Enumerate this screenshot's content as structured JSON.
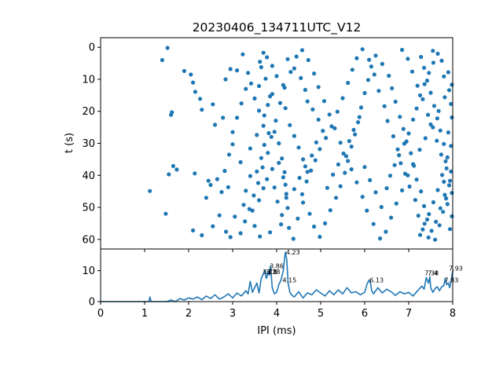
{
  "title": "20230406_134711UTC_V12",
  "colors": {
    "series": "#1f77b4",
    "axis": "#000000",
    "background": "#ffffff"
  },
  "chart_data": [
    {
      "panel": "top",
      "type": "scatter",
      "xlabel": "",
      "ylabel": "t (s)",
      "xlim": [
        0,
        8
      ],
      "ylim": [
        63,
        -3
      ],
      "y_inverted": true,
      "yticks": [
        0,
        10,
        20,
        30,
        40,
        50,
        60
      ],
      "xtick_labels_shown": false,
      "grid": false,
      "points_approx": [
        [
          1.52,
          0.2
        ],
        [
          1.4,
          4.0
        ],
        [
          1.9,
          7.4
        ],
        [
          2.05,
          8.5
        ],
        [
          2.1,
          11.0
        ],
        [
          2.15,
          13.9
        ],
        [
          1.62,
          20.3
        ],
        [
          1.6,
          21.1
        ],
        [
          2.26,
          16.1
        ],
        [
          2.3,
          19.5
        ],
        [
          2.55,
          17.8
        ],
        [
          2.6,
          24.2
        ],
        [
          2.78,
          22.0
        ],
        [
          2.84,
          10.0
        ],
        [
          2.95,
          6.8
        ],
        [
          3.1,
          7.2
        ],
        [
          3.23,
          2.2
        ],
        [
          3.3,
          13.0
        ],
        [
          3.18,
          35.9
        ],
        [
          3.0,
          30.3
        ],
        [
          2.9,
          43.7
        ],
        [
          2.75,
          45.2
        ],
        [
          2.45,
          41.7
        ],
        [
          2.14,
          39.4
        ],
        [
          2.1,
          57.2
        ],
        [
          2.3,
          58.7
        ],
        [
          1.73,
          38.2
        ],
        [
          1.65,
          37.1
        ],
        [
          1.55,
          39.7
        ],
        [
          1.48,
          52.0
        ],
        [
          1.12,
          44.9
        ],
        [
          2.95,
          59.3
        ],
        [
          3.05,
          52.9
        ],
        [
          3.25,
          49.2
        ],
        [
          3.45,
          51.0
        ],
        [
          3.6,
          47.8
        ],
        [
          3.7,
          44.0
        ],
        [
          3.78,
          41.2
        ],
        [
          3.9,
          38.0
        ],
        [
          4.05,
          36.1
        ],
        [
          4.15,
          40.6
        ],
        [
          4.2,
          42.9
        ],
        [
          4.22,
          47.0
        ],
        [
          4.25,
          50.2
        ],
        [
          4.1,
          55.3
        ],
        [
          3.85,
          57.8
        ],
        [
          3.62,
          59.1
        ],
        [
          3.5,
          55.8
        ],
        [
          3.4,
          31.6
        ],
        [
          3.55,
          27.4
        ],
        [
          3.7,
          24.5
        ],
        [
          3.72,
          21.3
        ],
        [
          3.8,
          18.0
        ],
        [
          3.9,
          14.6
        ],
        [
          3.6,
          12.1
        ],
        [
          3.62,
          4.5
        ],
        [
          3.7,
          1.7
        ],
        [
          3.78,
          3.1
        ],
        [
          3.9,
          5.8
        ],
        [
          4.0,
          9.0
        ],
        [
          4.15,
          11.8
        ],
        [
          4.25,
          3.7
        ],
        [
          4.4,
          6.6
        ],
        [
          4.55,
          9.6
        ],
        [
          4.65,
          13.3
        ],
        [
          4.7,
          16.9
        ],
        [
          4.82,
          19.4
        ],
        [
          4.95,
          22.6
        ],
        [
          5.05,
          26.1
        ],
        [
          4.9,
          29.7
        ],
        [
          4.8,
          33.8
        ],
        [
          4.65,
          37.2
        ],
        [
          4.52,
          40.8
        ],
        [
          4.4,
          44.3
        ],
        [
          4.6,
          48.5
        ],
        [
          4.75,
          52.0
        ],
        [
          4.85,
          56.0
        ],
        [
          4.98,
          59.2
        ],
        [
          5.1,
          55.0
        ],
        [
          5.22,
          50.9
        ],
        [
          5.35,
          47.0
        ],
        [
          5.45,
          43.4
        ],
        [
          5.55,
          39.2
        ],
        [
          5.62,
          35.5
        ],
        [
          5.7,
          31.0
        ],
        [
          5.78,
          27.2
        ],
        [
          5.85,
          23.4
        ],
        [
          5.92,
          18.8
        ],
        [
          6.0,
          14.3
        ],
        [
          6.08,
          10.2
        ],
        [
          6.15,
          6.0
        ],
        [
          6.25,
          2.6
        ],
        [
          6.4,
          5.2
        ],
        [
          6.55,
          8.9
        ],
        [
          6.62,
          12.8
        ],
        [
          6.7,
          17.0
        ],
        [
          6.8,
          21.7
        ],
        [
          6.88,
          25.5
        ],
        [
          6.95,
          29.4
        ],
        [
          7.05,
          33.1
        ],
        [
          7.12,
          37.0
        ],
        [
          7.18,
          41.3
        ],
        [
          7.28,
          45.0
        ],
        [
          7.35,
          49.6
        ],
        [
          7.42,
          53.8
        ],
        [
          7.52,
          57.3
        ],
        [
          7.6,
          60.1
        ],
        [
          7.7,
          55.6
        ],
        [
          7.78,
          51.4
        ],
        [
          7.85,
          47.2
        ],
        [
          7.92,
          43.1
        ],
        [
          7.96,
          38.8
        ],
        [
          7.88,
          34.4
        ],
        [
          7.8,
          30.2
        ],
        [
          7.72,
          26.0
        ],
        [
          7.65,
          22.2
        ],
        [
          7.58,
          18.3
        ],
        [
          7.5,
          14.2
        ],
        [
          7.42,
          10.4
        ],
        [
          7.35,
          6.4
        ],
        [
          7.28,
          3.0
        ],
        [
          7.55,
          1.1
        ],
        [
          7.75,
          4.2
        ],
        [
          7.9,
          7.8
        ],
        [
          7.98,
          11.7
        ],
        [
          7.82,
          15.6
        ],
        [
          7.68,
          19.9
        ],
        [
          7.5,
          24.1
        ],
        [
          7.38,
          28.4
        ],
        [
          7.25,
          32.0
        ],
        [
          7.1,
          36.5
        ],
        [
          6.98,
          40.0
        ],
        [
          6.85,
          44.7
        ],
        [
          6.72,
          48.8
        ],
        [
          6.6,
          53.2
        ],
        [
          6.48,
          57.6
        ],
        [
          6.35,
          59.7
        ],
        [
          6.2,
          55.2
        ],
        [
          6.05,
          51.0
        ],
        [
          5.95,
          46.7
        ],
        [
          5.82,
          42.2
        ],
        [
          5.7,
          38.1
        ],
        [
          5.58,
          34.0
        ],
        [
          5.45,
          29.8
        ],
        [
          5.32,
          25.3
        ],
        [
          5.2,
          21.0
        ],
        [
          5.08,
          16.8
        ],
        [
          4.95,
          12.4
        ],
        [
          4.85,
          8.2
        ],
        [
          4.72,
          4.0
        ],
        [
          4.58,
          0.9
        ],
        [
          4.45,
          2.9
        ],
        [
          4.32,
          7.7
        ],
        [
          4.18,
          12.6
        ],
        [
          4.08,
          17.4
        ],
        [
          3.98,
          22.9
        ],
        [
          3.88,
          28.0
        ],
        [
          3.8,
          33.0
        ],
        [
          3.68,
          37.5
        ],
        [
          3.58,
          42.4
        ],
        [
          3.48,
          46.3
        ],
        [
          3.38,
          50.5
        ],
        [
          3.28,
          54.4
        ],
        [
          3.18,
          58.1
        ],
        [
          3.95,
          43.8
        ],
        [
          4.02,
          48.2
        ],
        [
          4.12,
          52.4
        ],
        [
          4.28,
          56.4
        ],
        [
          4.38,
          59.8
        ],
        [
          4.48,
          53.5
        ],
        [
          4.58,
          45.9
        ],
        [
          4.68,
          41.9
        ],
        [
          4.78,
          38.5
        ],
        [
          4.88,
          35.3
        ],
        [
          4.98,
          31.8
        ],
        [
          5.12,
          28.3
        ],
        [
          5.25,
          24.7
        ],
        [
          5.38,
          20.1
        ],
        [
          5.5,
          15.9
        ],
        [
          5.62,
          11.1
        ],
        [
          5.72,
          7.0
        ],
        [
          5.82,
          3.4
        ],
        [
          5.95,
          0.6
        ],
        [
          6.1,
          3.9
        ],
        [
          6.22,
          8.5
        ],
        [
          6.32,
          13.6
        ],
        [
          6.45,
          18.4
        ],
        [
          6.52,
          23.0
        ],
        [
          6.65,
          27.8
        ],
        [
          6.75,
          31.9
        ],
        [
          6.82,
          36.2
        ],
        [
          6.92,
          39.5
        ],
        [
          7.02,
          43.5
        ],
        [
          7.15,
          47.7
        ],
        [
          7.22,
          52.6
        ],
        [
          7.32,
          56.9
        ],
        [
          7.45,
          59.4
        ],
        [
          7.62,
          54.5
        ],
        [
          7.72,
          50.3
        ],
        [
          7.82,
          46.1
        ],
        [
          7.94,
          41.7
        ],
        [
          7.86,
          37.8
        ],
        [
          7.74,
          33.5
        ],
        [
          7.64,
          29.2
        ],
        [
          7.55,
          25.0
        ],
        [
          7.44,
          21.1
        ],
        [
          7.32,
          16.2
        ],
        [
          7.2,
          12.0
        ],
        [
          7.08,
          7.6
        ],
        [
          6.98,
          3.6
        ],
        [
          6.85,
          0.8
        ],
        [
          3.65,
          6.2
        ],
        [
          3.75,
          9.8
        ],
        [
          3.85,
          15.3
        ],
        [
          4.2,
          19.0
        ],
        [
          4.3,
          24.3
        ],
        [
          4.4,
          27.7
        ],
        [
          4.5,
          31.3
        ],
        [
          4.6,
          35.0
        ],
        [
          4.7,
          38.9
        ],
        [
          3.95,
          26.4
        ],
        [
          4.05,
          30.0
        ],
        [
          4.12,
          34.7
        ],
        [
          4.18,
          39.0
        ],
        [
          4.22,
          45.8
        ],
        [
          3.55,
          38.8
        ],
        [
          3.65,
          34.6
        ],
        [
          3.72,
          30.5
        ],
        [
          3.82,
          26.8
        ],
        [
          3.6,
          19.8
        ],
        [
          3.5,
          16.0
        ],
        [
          3.42,
          11.3
        ],
        [
          3.35,
          8.0
        ],
        [
          3.2,
          17.5
        ],
        [
          3.1,
          22.0
        ],
        [
          3.0,
          26.5
        ],
        [
          2.92,
          33.5
        ],
        [
          2.82,
          38.6
        ],
        [
          2.65,
          41.2
        ],
        [
          2.5,
          43.0
        ],
        [
          2.4,
          47.0
        ],
        [
          2.7,
          52.5
        ],
        [
          2.55,
          55.9
        ],
        [
          2.85,
          57.6
        ],
        [
          3.3,
          44.8
        ],
        [
          3.4,
          40.2
        ],
        [
          5.15,
          43.9
        ],
        [
          5.28,
          39.8
        ],
        [
          5.4,
          36.6
        ],
        [
          5.52,
          33.2
        ],
        [
          5.65,
          29.3
        ],
        [
          5.75,
          25.8
        ],
        [
          5.88,
          21.8
        ],
        [
          6.0,
          37.4
        ],
        [
          6.12,
          41.5
        ],
        [
          6.25,
          45.3
        ],
        [
          6.38,
          49.9
        ],
        [
          6.5,
          44.0
        ],
        [
          6.58,
          40.1
        ],
        [
          6.68,
          36.8
        ],
        [
          6.78,
          33.7
        ],
        [
          6.9,
          30.1
        ],
        [
          7.0,
          26.9
        ],
        [
          7.1,
          22.6
        ],
        [
          7.18,
          19.1
        ],
        [
          7.26,
          15.0
        ],
        [
          7.36,
          11.5
        ],
        [
          7.46,
          8.0
        ],
        [
          7.56,
          4.8
        ],
        [
          7.66,
          2.0
        ],
        [
          7.8,
          9.1
        ],
        [
          7.92,
          13.4
        ],
        [
          7.96,
          17.7
        ],
        [
          7.98,
          21.9
        ],
        [
          7.9,
          26.6
        ],
        [
          7.96,
          30.8
        ],
        [
          7.84,
          35.6
        ],
        [
          7.76,
          39.9
        ],
        [
          7.66,
          44.6
        ],
        [
          7.56,
          48.4
        ],
        [
          7.46,
          52.1
        ],
        [
          7.36,
          55.1
        ],
        [
          7.26,
          58.6
        ],
        [
          7.94,
          56.8
        ],
        [
          7.98,
          52.8
        ],
        [
          7.88,
          49.0
        ],
        [
          7.98,
          45.5
        ],
        [
          7.8,
          42.0
        ]
      ]
    },
    {
      "panel": "bottom",
      "type": "line",
      "xlabel": "IPI (ms)",
      "ylabel": "",
      "xlim": [
        0,
        8
      ],
      "ylim": [
        0,
        17
      ],
      "xticks": [
        0,
        1,
        2,
        3,
        4,
        5,
        6,
        7,
        8
      ],
      "yticks": [
        0,
        10
      ],
      "grid": false,
      "x": [
        0.0,
        1.0,
        1.1,
        1.12,
        1.15,
        1.2,
        1.5,
        1.6,
        1.7,
        1.8,
        1.9,
        2.0,
        2.1,
        2.2,
        2.3,
        2.4,
        2.5,
        2.6,
        2.7,
        2.8,
        2.9,
        3.0,
        3.1,
        3.2,
        3.3,
        3.35,
        3.4,
        3.45,
        3.5,
        3.55,
        3.6,
        3.65,
        3.7,
        3.73,
        3.76,
        3.78,
        3.8,
        3.83,
        3.86,
        3.9,
        3.95,
        4.0,
        4.05,
        4.1,
        4.15,
        4.18,
        4.2,
        4.23,
        4.26,
        4.3,
        4.35,
        4.4,
        4.5,
        4.6,
        4.7,
        4.8,
        4.9,
        5.0,
        5.1,
        5.2,
        5.3,
        5.4,
        5.5,
        5.6,
        5.7,
        5.8,
        5.9,
        6.0,
        6.05,
        6.1,
        6.13,
        6.16,
        6.2,
        6.3,
        6.4,
        6.5,
        6.6,
        6.7,
        6.8,
        6.9,
        7.0,
        7.1,
        7.2,
        7.3,
        7.35,
        7.4,
        7.45,
        7.48,
        7.5,
        7.55,
        7.6,
        7.65,
        7.7,
        7.75,
        7.8,
        7.83,
        7.86,
        7.9,
        7.93,
        7.96,
        8.0
      ],
      "y": [
        0,
        0,
        0,
        1.5,
        0,
        0,
        0,
        0.5,
        0,
        1,
        0.5,
        1.2,
        0.8,
        1.5,
        0.6,
        1.8,
        1,
        2.2,
        0.8,
        1.5,
        2.5,
        1.2,
        2.8,
        1.8,
        3.5,
        2.5,
        6.5,
        3,
        4.5,
        6,
        2.8,
        7.5,
        9,
        10.2,
        7.5,
        7.8,
        9.8,
        8.5,
        11.5,
        4.5,
        2.5,
        3,
        5.5,
        7,
        10,
        14,
        16,
        13.5,
        6,
        3,
        2,
        1.5,
        3.2,
        1.2,
        2.8,
        2.2,
        3.8,
        2.8,
        1.8,
        3.5,
        2.2,
        3.8,
        2.5,
        4.5,
        2.8,
        3.2,
        2.2,
        3,
        5.5,
        7,
        6,
        3.5,
        2.5,
        4.5,
        2.8,
        4,
        3.2,
        2,
        3.2,
        2.5,
        3,
        1.8,
        3.5,
        5,
        4,
        7.8,
        6,
        8,
        4.5,
        3,
        4.2,
        4.8,
        3.5,
        4.8,
        5.2,
        7.5,
        5.5,
        6,
        4.5,
        6.5,
        10
      ]
    }
  ],
  "peak_labels": [
    {
      "text": "4.23",
      "x": 4.23,
      "y": 16
    },
    {
      "text": "3.86",
      "x": 3.86,
      "y": 11.5
    },
    {
      "text": "3.73",
      "x": 3.7,
      "y": 9.6
    },
    {
      "text": "3.78",
      "x": 3.78,
      "y": 9.6
    },
    {
      "text": "3.8",
      "x": 3.8,
      "y": 9.6
    },
    {
      "text": "4.15",
      "x": 4.15,
      "y": 7.0
    },
    {
      "text": "6.13",
      "x": 6.13,
      "y": 7.0
    },
    {
      "text": "7.38",
      "x": 7.38,
      "y": 9.2
    },
    {
      "text": "7.4",
      "x": 7.45,
      "y": 9.2
    },
    {
      "text": "7.83",
      "x": 7.83,
      "y": 7.0
    },
    {
      "text": "7.93",
      "x": 7.93,
      "y": 10.8
    }
  ]
}
